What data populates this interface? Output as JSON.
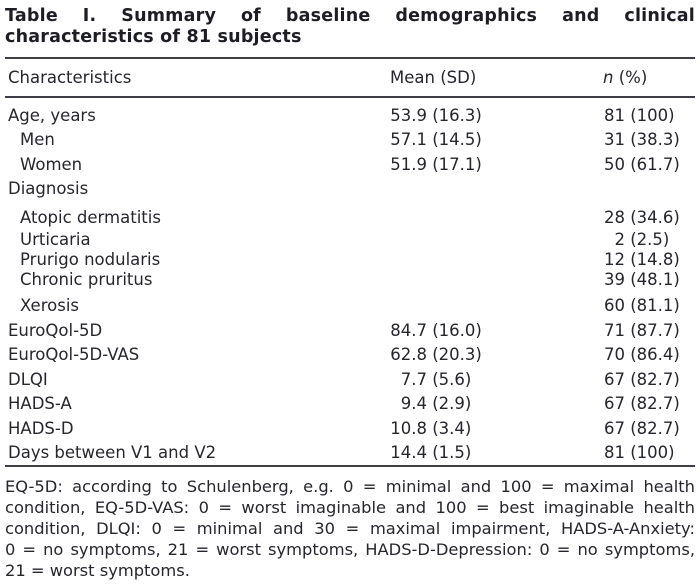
{
  "title": {
    "line1": "Table I. Summary of baseline demographics and clinical",
    "line2": "characteristics of 81 subjects"
  },
  "header": {
    "characteristics": "Characteristics",
    "mean_sd": "Mean (SD)",
    "n_italic": "n",
    "n_rest": " (%)"
  },
  "rows": [
    {
      "label": "Age, years",
      "indent": false,
      "mean": "53.9",
      "sd": "(16.3)",
      "n": "81",
      "pct": "(100)"
    },
    {
      "label": "Men",
      "indent": true,
      "mean": "57.1",
      "sd": "(14.5)",
      "n": "31",
      "pct": "(38.3)"
    },
    {
      "label": "Women",
      "indent": true,
      "mean": "51.9",
      "sd": "(17.1)",
      "n": "50",
      "pct": "(61.7)"
    },
    {
      "label": "Diagnosis",
      "indent": false,
      "mean": "",
      "sd": "",
      "n": "",
      "pct": ""
    },
    {
      "label": "Atopic dermatitis",
      "indent": true,
      "mean": "",
      "sd": "",
      "n": "28",
      "pct": "(34.6)"
    },
    {
      "label": "Urticaria",
      "indent": true,
      "mean": "",
      "sd": "",
      "n": "2",
      "pct": "(2.5)"
    },
    {
      "label": "Prurigo nodularis",
      "indent": true,
      "mean": "",
      "sd": "",
      "n": "12",
      "pct": "(14.8)"
    },
    {
      "label": "Chronic pruritus",
      "indent": true,
      "mean": "",
      "sd": "",
      "n": "39",
      "pct": "(48.1)"
    },
    {
      "label": "Xerosis",
      "indent": true,
      "mean": "",
      "sd": "",
      "n": "60",
      "pct": "(81.1)"
    },
    {
      "label": "EuroQol-5D",
      "indent": false,
      "mean": "84.7",
      "sd": "(16.0)",
      "n": "71",
      "pct": "(87.7)"
    },
    {
      "label": "EuroQol-5D-VAS",
      "indent": false,
      "mean": "62.8",
      "sd": "(20.3)",
      "n": "70",
      "pct": "(86.4)"
    },
    {
      "label": "DLQI",
      "indent": false,
      "mean": "7.7",
      "sd": "(5.6)",
      "n": "67",
      "pct": "(82.7)"
    },
    {
      "label": "HADS-A",
      "indent": false,
      "mean": "9.4",
      "sd": "(2.9)",
      "n": "67",
      "pct": "(82.7)"
    },
    {
      "label": "HADS-D",
      "indent": false,
      "mean": "10.8",
      "sd": "(3.4)",
      "n": "67",
      "pct": "(82.7)"
    },
    {
      "label": "Days between V1 and V2",
      "indent": false,
      "mean": "14.4",
      "sd": "(1.5)",
      "n": "81",
      "pct": "(100)"
    }
  ],
  "footnote": {
    "lines": [
      "EQ-5D: according to Schulenberg, e.g. 0 = minimal and 100 = maximal health",
      "condition, EQ-5D-VAS: 0 = worst imaginable and 100 = best imaginable health",
      "condition, DLQI: 0 = minimal and 30 = maximal impairment, HADS-A-Anxiety:",
      "0 = no symptoms, 21 = worst symptoms, HADS-D-Depression: 0 = no symptoms,",
      "21 = worst symptoms."
    ]
  },
  "colors": {
    "text": "#26262c",
    "title": "#1d1d24",
    "rule": "#3e3e46",
    "background": "#ffffff"
  }
}
